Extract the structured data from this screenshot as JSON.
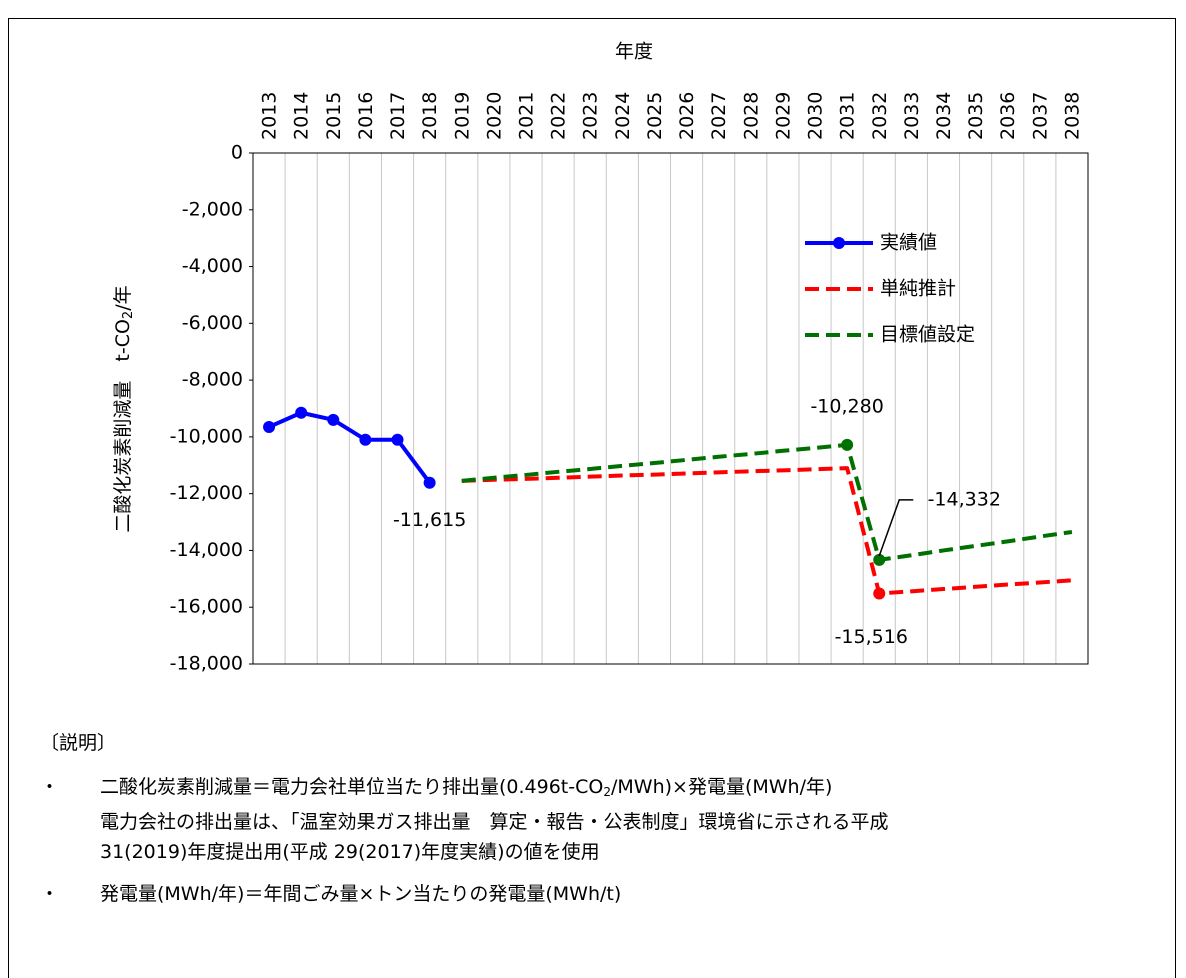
{
  "chart_data": {
    "type": "line",
    "x_label": "年度",
    "y_label": [
      "二酸化炭素削減量　t-CO",
      "2",
      "/年"
    ],
    "categories": [
      "2013",
      "2014",
      "2015",
      "2016",
      "2017",
      "2018",
      "2019",
      "2020",
      "2021",
      "2022",
      "2023",
      "2024",
      "2025",
      "2026",
      "2027",
      "2028",
      "2029",
      "2030",
      "2031",
      "2032",
      "2033",
      "2034",
      "2035",
      "2036",
      "2037",
      "2038"
    ],
    "ylim": [
      -18000,
      0
    ],
    "yticks": [
      0,
      {
        "value": -2000,
        "label": "-2,000"
      },
      {
        "value": -4000,
        "label": "-4,000"
      },
      {
        "value": -6000,
        "label": "-6,000"
      },
      {
        "value": -8000,
        "label": "-8,000"
      },
      {
        "value": -10000,
        "label": "-10,000"
      },
      {
        "value": -12000,
        "label": "-12,000"
      },
      {
        "value": -14000,
        "label": "-14,000"
      },
      {
        "value": -16000,
        "label": "-16,000"
      },
      {
        "value": -18000,
        "label": "-18,000"
      }
    ],
    "grid": "x",
    "legend": "upper right",
    "series": [
      {
        "name": "実績値",
        "color": "#0000ff",
        "dash": false,
        "marker": true,
        "values": [
          -9650,
          -9150,
          -9400,
          -10100,
          -10100,
          -11615,
          null,
          null,
          null,
          null,
          null,
          null,
          null,
          null,
          null,
          null,
          null,
          null,
          null,
          null,
          null,
          null,
          null,
          null,
          null,
          null
        ],
        "value_labels": [
          null,
          null,
          null,
          null,
          null,
          "-11,615",
          null,
          null,
          null,
          null,
          null,
          null,
          null,
          null,
          null,
          null,
          null,
          null,
          null,
          null,
          null,
          null,
          null,
          null,
          null,
          null
        ]
      },
      {
        "name": "単純推計",
        "color": "#ff0000",
        "dash": true,
        "marker": false,
        "values": [
          null,
          null,
          null,
          null,
          null,
          null,
          -11550,
          -11510,
          -11480,
          -11440,
          -11400,
          -11360,
          -11330,
          -11290,
          -11250,
          -11210,
          -11180,
          -11140,
          -11100,
          -15516,
          -15440,
          -15360,
          -15280,
          -15200,
          -15130,
          -15050
        ],
        "value_labels": [
          null,
          null,
          null,
          null,
          null,
          null,
          null,
          null,
          null,
          null,
          null,
          null,
          null,
          null,
          null,
          null,
          null,
          null,
          null,
          "-15,516",
          null,
          null,
          null,
          null,
          null,
          null
        ]
      },
      {
        "name": "目標値設定",
        "color": "#007000",
        "dash": true,
        "marker": false,
        "values": [
          null,
          null,
          null,
          null,
          null,
          null,
          -11550,
          -11440,
          -11340,
          -11230,
          -11130,
          -11020,
          -10920,
          -10810,
          -10700,
          -10600,
          -10490,
          -10390,
          -10280,
          -14332,
          -14170,
          -14000,
          -13840,
          -13680,
          -13510,
          -13350
        ],
        "value_labels": [
          null,
          null,
          null,
          null,
          null,
          null,
          null,
          null,
          null,
          null,
          null,
          null,
          null,
          null,
          null,
          null,
          null,
          null,
          "-10,280",
          "-14,332",
          null,
          null,
          null,
          null,
          null,
          null
        ]
      }
    ]
  },
  "notes": {
    "heading": "〔説明〕",
    "bullet": "・",
    "items": [
      {
        "lines": [
          [
            "二酸化炭素削減量＝電力会社単位当たり排出量(0.496t-CO",
            "2",
            "/MWh)×発電量(MWh/年)"
          ],
          [
            "電力会社の排出量は、「温室効果ガス排出量　算定・報告・公表制度」環境省に示される平成"
          ],
          [
            "31(2019)年度提出用(平成 29(2017)年度実績)の値を使用"
          ]
        ]
      },
      {
        "lines": [
          [
            "発電量(MWh/年)＝年間ごみ量×トン当たりの発電量(MWh/t)"
          ]
        ]
      }
    ]
  }
}
